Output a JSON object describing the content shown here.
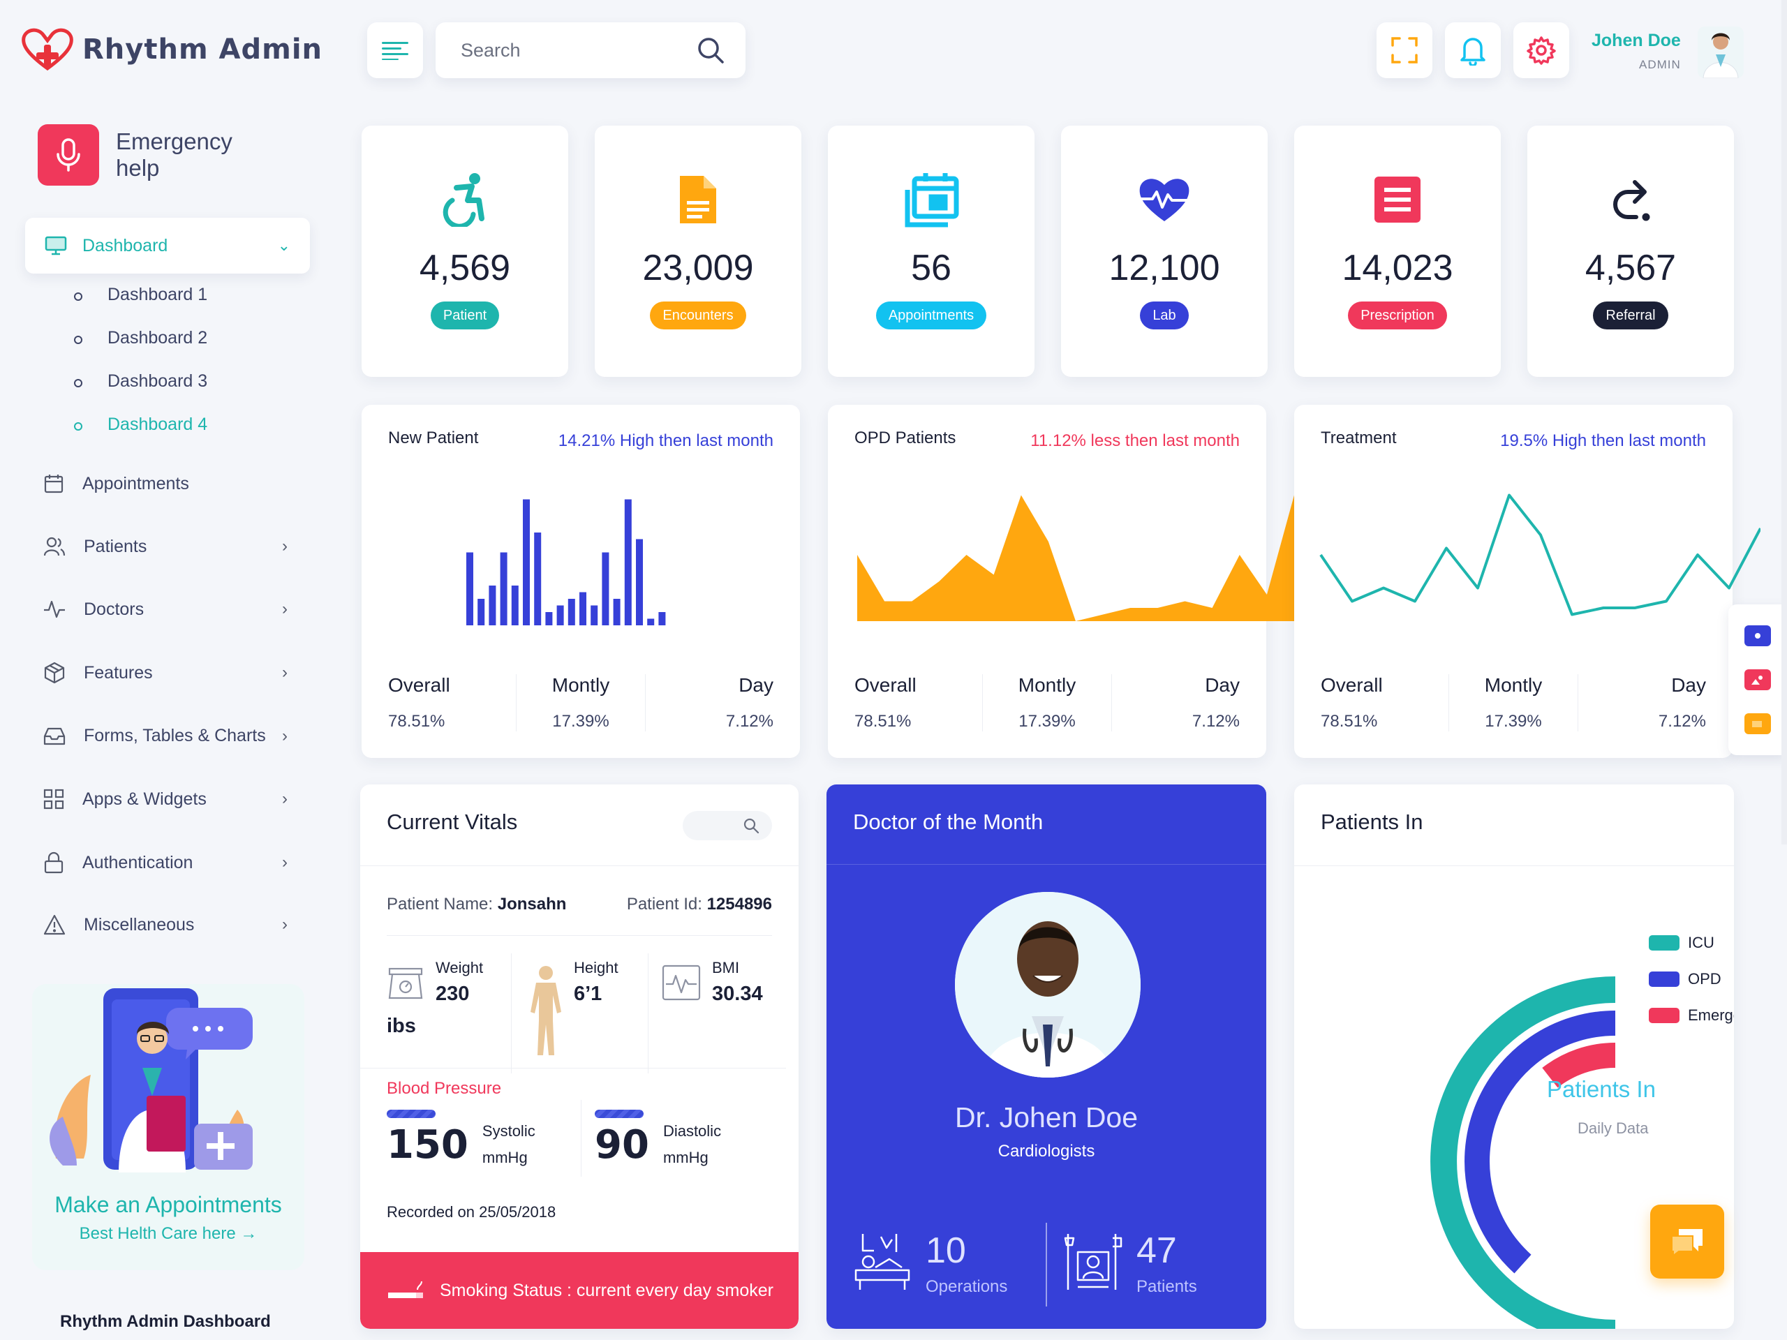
{
  "brand": {
    "name": "Rhythm Admin"
  },
  "header": {
    "search_placeholder": "Search",
    "user_name": "Johen Doe",
    "user_role": "ADMIN"
  },
  "sidebar": {
    "emergency": "Emergency help",
    "active": {
      "label": "Dashboard",
      "children": [
        "Dashboard 1",
        "Dashboard 2",
        "Dashboard 3",
        "Dashboard 4"
      ]
    },
    "items": [
      {
        "label": "Appointments"
      },
      {
        "label": "Patients"
      },
      {
        "label": "Doctors"
      },
      {
        "label": "Features"
      },
      {
        "label": "Forms, Tables & Charts"
      },
      {
        "label": "Apps & Widgets"
      },
      {
        "label": "Authentication"
      },
      {
        "label": "Miscellaneous"
      }
    ],
    "promo_title": "Make an Appointments",
    "promo_link": "Best Helth Care here →",
    "footer_title": "Rhythm Admin Dashboard"
  },
  "stats": [
    {
      "value": "4,569",
      "label": "Patient",
      "color": "#1eb5ad",
      "icon": "wheelchair-icon"
    },
    {
      "value": "23,009",
      "label": "Encounters",
      "color": "#ffa70f",
      "icon": "document-icon"
    },
    {
      "value": "56",
      "label": "Appointments",
      "color": "#12c2f0",
      "icon": "calendar-icon"
    },
    {
      "value": "12,100",
      "label": "Lab",
      "color": "#3640d8",
      "icon": "heartbeat-icon"
    },
    {
      "value": "14,023",
      "label": "Prescription",
      "color": "#f0385b",
      "icon": "prescription-icon"
    },
    {
      "value": "4,567",
      "label": "Referral",
      "color": "#1b2036",
      "icon": "redo-icon"
    }
  ],
  "mini_cards": [
    {
      "title": "New Patient",
      "trend": "14.21% High then last month",
      "trend_color": "#3640d8",
      "overall": "78.51%",
      "monthly": "17.39%",
      "day": "7.12%"
    },
    {
      "title": "OPD Patients",
      "trend": "11.12% less then last month",
      "trend_color": "#f0385b",
      "overall": "78.51%",
      "monthly": "17.39%",
      "day": "7.12%"
    },
    {
      "title": "Treatment",
      "trend": "19.5% High then last month",
      "trend_color": "#3640d8",
      "overall": "78.51%",
      "monthly": "17.39%",
      "day": "7.12%"
    }
  ],
  "mini_labels": {
    "overall": "Overall",
    "monthly": "Montly",
    "day": "Day"
  },
  "chart_data": [
    {
      "type": "bar",
      "color": "#3640d8",
      "values": [
        11,
        4,
        6,
        11,
        6,
        19,
        14,
        2,
        3,
        4,
        5,
        3,
        11,
        4,
        19,
        13,
        1,
        2
      ]
    },
    {
      "type": "area",
      "color": "#ffa70f",
      "values": [
        10,
        3,
        3,
        6,
        10,
        7,
        19,
        12,
        0,
        1,
        2,
        2,
        3,
        2,
        10,
        4,
        19
      ]
    },
    {
      "type": "line",
      "color": "#1eb5ad",
      "values": [
        10,
        3,
        5,
        3,
        11,
        5,
        19,
        13,
        1,
        2,
        2,
        3,
        10,
        5,
        14
      ]
    }
  ],
  "vitals": {
    "title": "Current Vitals",
    "patient_name_label": "Patient Name:",
    "patient_name": "Jonsahn",
    "patient_id_label": "Patient Id:",
    "patient_id": "1254896",
    "weight_label": "Weight",
    "weight": "230",
    "weight_unit": "ibs",
    "height_label": "Height",
    "height": "6’1",
    "bmi_label": "BMI",
    "bmi": "30.34",
    "bp_label": "Blood Pressure",
    "systolic": "150",
    "systolic_label": "Systolic",
    "diastolic": "90",
    "diastolic_label": "Diastolic",
    "unit": "mmHg",
    "recorded": "Recorded on 25/05/2018",
    "smoking": "Smoking Status : current every day smoker"
  },
  "doctor": {
    "title": "Doctor of the Month",
    "name": "Dr. Johen Doe",
    "specialty": "Cardiologists",
    "operations": "10",
    "operations_label": "Operations",
    "patients": "47",
    "patients_label": "Patients"
  },
  "patients_in": {
    "title": "Patients In",
    "center_title": "Patients In",
    "center_sub": "Daily Data",
    "legend": [
      {
        "label": "ICU",
        "color": "#1eb5ad"
      },
      {
        "label": "OPD",
        "color": "#3640d8"
      },
      {
        "label": "Emergency",
        "color": "#f0385b"
      }
    ]
  }
}
